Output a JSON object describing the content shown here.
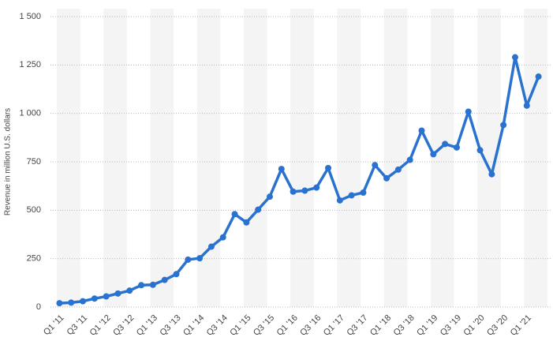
{
  "chart_data": {
    "type": "line",
    "y_label": "Revenue in million U.S. dollars",
    "categories": [
      "Q1 '11",
      null,
      "Q3 '11",
      null,
      "Q1 '12",
      null,
      "Q3 '12",
      null,
      "Q1 '13",
      null,
      "Q3 '13",
      null,
      "Q1 '14",
      null,
      "Q3 '14",
      null,
      "Q1 '15",
      null,
      "Q3 '15",
      null,
      "Q1 '16",
      null,
      "Q3 '16",
      null,
      "Q1 '17",
      null,
      "Q3 '17",
      null,
      "Q1 '18",
      null,
      "Q3 '18",
      null,
      "Q1 '19",
      null,
      "Q3 '19",
      null,
      "Q1 '20",
      null,
      "Q3 '20",
      null,
      "Q1 '21",
      null
    ],
    "values": [
      20,
      23,
      30,
      44,
      55,
      70,
      85,
      113,
      115,
      140,
      170,
      245,
      252,
      312,
      360,
      480,
      437,
      503,
      570,
      713,
      596,
      601,
      617,
      718,
      551,
      577,
      591,
      733,
      665,
      710,
      760,
      911,
      789,
      842,
      824,
      1009,
      810,
      686,
      940,
      1290,
      1040,
      1190
    ],
    "color": "#2a72cf",
    "ylim": [
      0,
      1500
    ],
    "yticks": [
      0,
      250,
      500,
      750,
      {
        "value": 1000,
        "label": "1 000"
      },
      {
        "value": 1250,
        "label": "1 250"
      },
      {
        "value": 1500,
        "label": "1 500"
      }
    ],
    "grid": true
  }
}
